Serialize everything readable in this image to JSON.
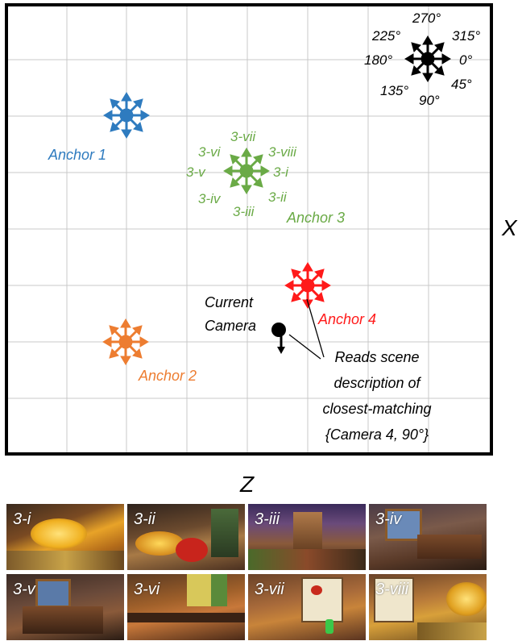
{
  "axes": {
    "x_label": "X",
    "z_label": "Z"
  },
  "compass": {
    "angles": [
      "270°",
      "225°",
      "315°",
      "180°",
      "0°",
      "135°",
      "45°",
      "90°"
    ]
  },
  "anchors": {
    "anchor1": {
      "label": "Anchor 1",
      "color": "#2e7bbf"
    },
    "anchor2": {
      "label": "Anchor 2",
      "color": "#ed7d31"
    },
    "anchor3": {
      "label": "Anchor 3",
      "color": "#6aaa46",
      "directions": [
        "3-vii",
        "3-vi",
        "3-viii",
        "3-v",
        "3-i",
        "3-iv",
        "3-ii",
        "3-iii"
      ]
    },
    "anchor4": {
      "label": "Anchor 4",
      "color": "#ff1a1a"
    }
  },
  "camera": {
    "label_line1": "Current",
    "label_line2": "Camera"
  },
  "note": {
    "line1": "Reads scene",
    "line2": "description of",
    "line3": "closest-matching",
    "line4": "{Camera 4, 90°}"
  },
  "thumbnails": [
    {
      "label": "3-i"
    },
    {
      "label": "3-ii"
    },
    {
      "label": "3-iii"
    },
    {
      "label": "3-iv"
    },
    {
      "label": "3-v"
    },
    {
      "label": "3-vi"
    },
    {
      "label": "3-vii"
    },
    {
      "label": "3-viii"
    }
  ]
}
